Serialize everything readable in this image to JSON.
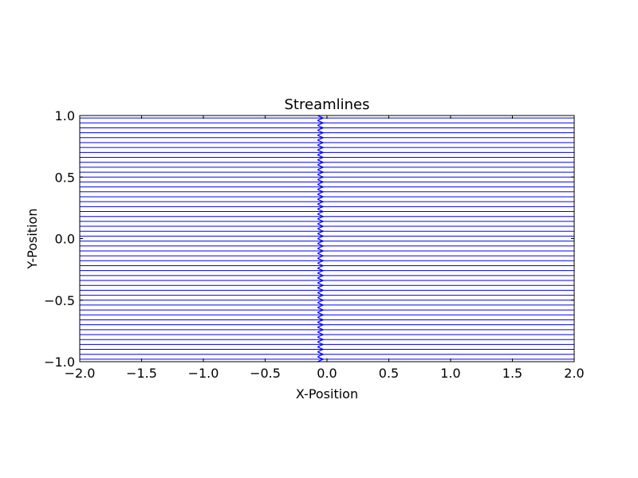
{
  "chart_data": {
    "type": "line",
    "title": "Streamlines",
    "xlabel": "X-Position",
    "ylabel": "Y-Position",
    "xlim": [
      -2.0,
      2.0
    ],
    "ylim": [
      -1.0,
      1.0
    ],
    "xticks": [
      -2.0,
      -1.5,
      -1.0,
      -0.5,
      0.0,
      0.5,
      1.0,
      1.5,
      2.0
    ],
    "xtick_labels": [
      "−2.0",
      "−1.5",
      "−1.0",
      "−0.5",
      "0.0",
      "0.5",
      "1.0",
      "1.5",
      "2.0"
    ],
    "yticks": [
      -1.0,
      -0.5,
      0.0,
      0.5,
      1.0
    ],
    "ytick_labels": [
      "−1.0",
      "−0.5",
      "0.0",
      "0.5",
      "1.0"
    ],
    "grid": false,
    "line_color": "#0000ff",
    "arrow_x": -0.05,
    "streamlines": {
      "count": 50,
      "y_start": -0.98,
      "y_end": 0.98,
      "x_range": [
        -2.0,
        2.0
      ],
      "direction": "positive-x"
    }
  }
}
